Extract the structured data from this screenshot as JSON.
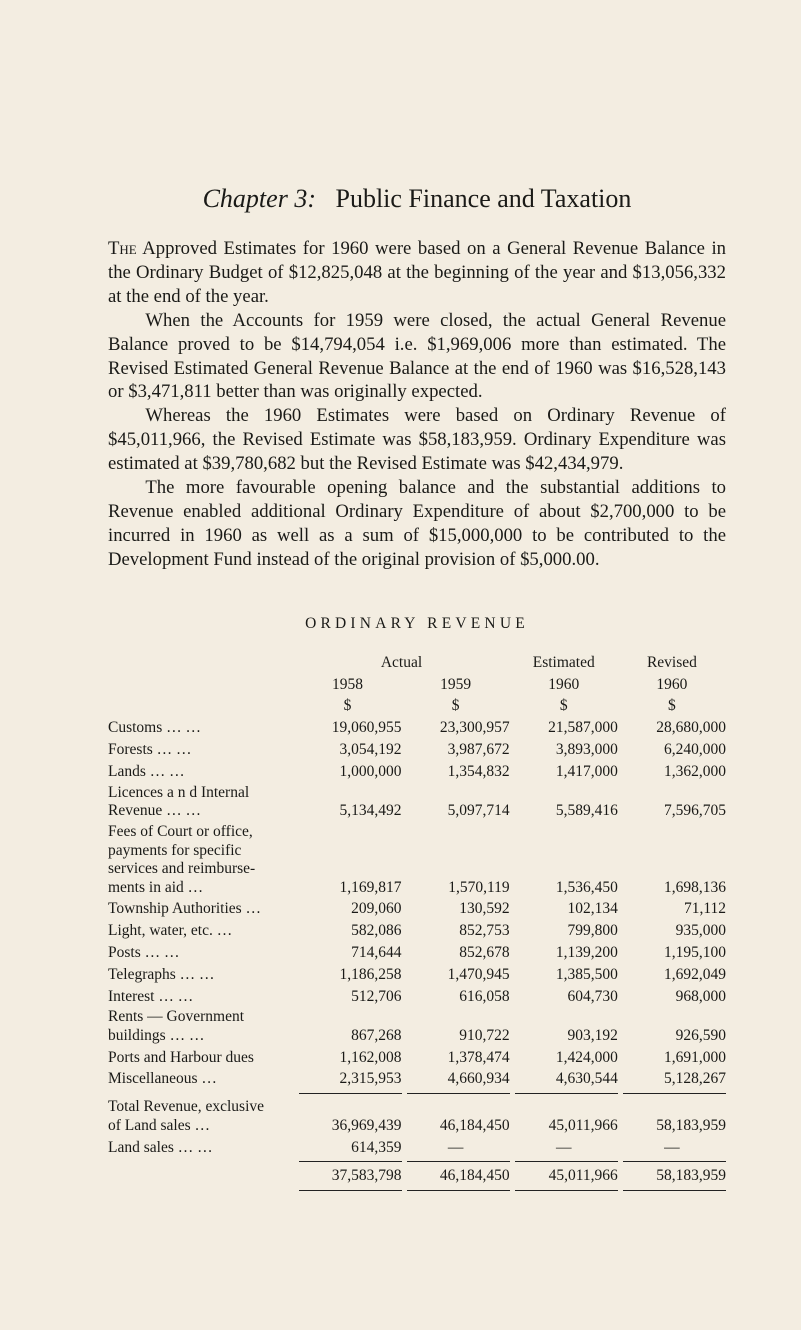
{
  "title_italic": "Chapter 3:",
  "title_rest": "Public Finance and Taxation",
  "para1_lead": "The",
  "para1_rest": " Approved Estimates for 1960 were based on a General Revenue Balance in the Ordinary Budget of $12,825,048 at the beginning of the year and $13,056,332 at the end of the year.",
  "para2": "When the Accounts for 1959 were closed, the actual General Revenue Balance proved to be $14,794,054 i.e. $1,969,006 more than estimated. The Revised Estimated General Revenue Balance at the end of 1960 was $16,528,143 or $3,471,811 better than was originally expected.",
  "para3": "Whereas the 1960 Estimates were based on Ordinary Revenue of $45,011,966, the Revised Estimate was $58,183,959. Ordinary Expenditure was estimated at $39,780,682 but the Revised Estimate was $42,434,979.",
  "para4": "The more favourable opening balance and the substantial additions to Revenue enabled additional Ordinary Expenditure of about $2,700,000 to be incurred in 1960 as well as a sum of $15,000,000 to be contributed to the Development Fund instead of the original provision of $5,000.00.",
  "table_title": "ORDINARY REVENUE",
  "hdr": {
    "actual": "Actual",
    "estimated": "Estimated",
    "revised": "Revised",
    "y1958": "1958",
    "y1959": "1959",
    "y1960a": "1960",
    "y1960b": "1960",
    "d": "$"
  },
  "rows": {
    "customs": {
      "label": "Customs        …        …",
      "c": [
        "19,060,955",
        "23,300,957",
        "21,587,000",
        "28,680,000"
      ]
    },
    "forests": {
      "label": "Forests          …        …",
      "c": [
        "3,054,192",
        "3,987,672",
        "3,893,000",
        "6,240,000"
      ]
    },
    "lands": {
      "label": "Lands             …        …",
      "c": [
        "1,000,000",
        "1,354,832",
        "1,417,000",
        "1,362,000"
      ]
    },
    "licences": {
      "label": "Licences  a n d   Internal\n    Revenue        …        …",
      "c": [
        "5,134,492",
        "5,097,714",
        "5,589,416",
        "7,596,705"
      ]
    },
    "fees": {
      "label": "Fees of Court or office,\n  payments  for   specific\n  services and reimburse-\n  ments in aid             …",
      "c": [
        "1,169,817",
        "1,570,119",
        "1,536,450",
        "1,698,136"
      ]
    },
    "township": {
      "label": "Township Authorities …",
      "c": [
        "209,060",
        "130,592",
        "102,134",
        "71,112"
      ]
    },
    "light": {
      "label": "Light, water, etc.        …",
      "c": [
        "582,086",
        "852,753",
        "799,800",
        "935,000"
      ]
    },
    "posts": {
      "label": "Posts              …        …",
      "c": [
        "714,644",
        "852,678",
        "1,139,200",
        "1,195,100"
      ]
    },
    "telegraphs": {
      "label": "Telegraphs     …        …",
      "c": [
        "1,186,258",
        "1,470,945",
        "1,385,500",
        "1,692,049"
      ]
    },
    "interest": {
      "label": "Interest           …        …",
      "c": [
        "512,706",
        "616,058",
        "604,730",
        "968,000"
      ]
    },
    "rents": {
      "label": "Rents — Government\n    buildings      …        …",
      "c": [
        "867,268",
        "910,722",
        "903,192",
        "926,590"
      ]
    },
    "ports": {
      "label": "Ports and Harbour dues",
      "c": [
        "1,162,008",
        "1,378,474",
        "1,424,000",
        "1,691,000"
      ]
    },
    "misc": {
      "label": "Miscellaneous           …",
      "c": [
        "2,315,953",
        "4,660,934",
        "4,630,544",
        "5,128,267"
      ]
    },
    "total": {
      "label": "Total Revenue, exclusive\n    of Land sales          …",
      "c": [
        "36,969,439",
        "46,184,450",
        "45,011,966",
        "58,183,959"
      ]
    },
    "landsales": {
      "label": "Land sales     …        …",
      "c": [
        "614,359",
        "—",
        "—",
        "—"
      ]
    },
    "grand": {
      "label": "",
      "c": [
        "37,583,798",
        "46,184,450",
        "45,011,966",
        "58,183,959"
      ]
    }
  }
}
